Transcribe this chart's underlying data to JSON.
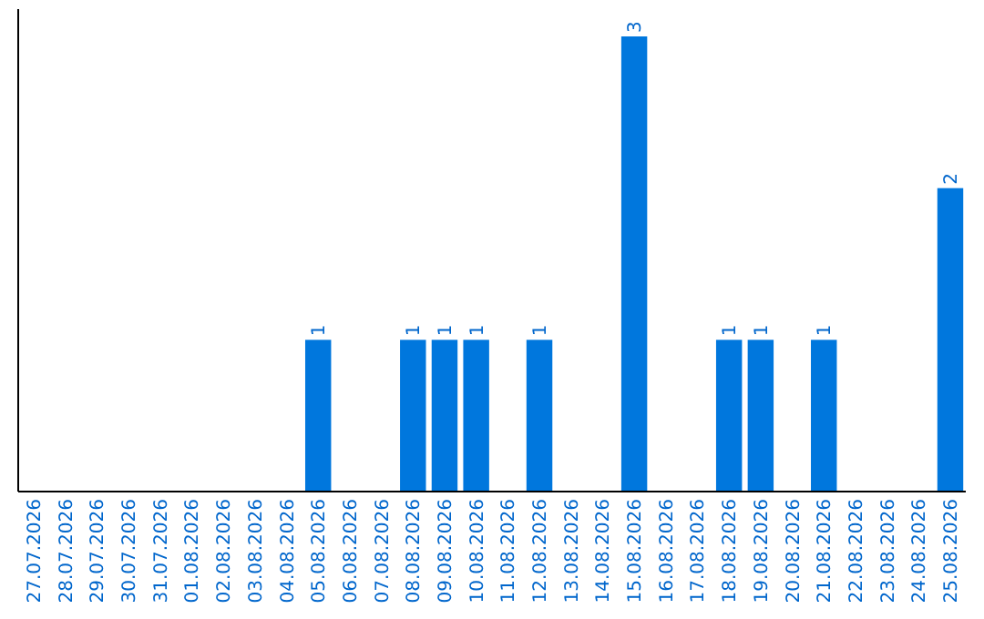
{
  "chart_data": {
    "type": "bar",
    "categories": [
      "27.07.2026",
      "28.07.2026",
      "29.07.2026",
      "30.07.2026",
      "31.07.2026",
      "01.08.2026",
      "02.08.2026",
      "03.08.2026",
      "04.08.2026",
      "05.08.2026",
      "06.08.2026",
      "07.08.2026",
      "08.08.2026",
      "09.08.2026",
      "10.08.2026",
      "11.08.2026",
      "12.08.2026",
      "13.08.2026",
      "14.08.2026",
      "15.08.2026",
      "16.08.2026",
      "17.08.2026",
      "18.08.2026",
      "19.08.2026",
      "20.08.2026",
      "21.08.2026",
      "22.08.2026",
      "23.08.2026",
      "24.08.2026",
      "25.08.2026"
    ],
    "values": [
      0,
      0,
      0,
      0,
      0,
      0,
      0,
      0,
      0,
      1,
      0,
      0,
      1,
      1,
      1,
      0,
      1,
      0,
      0,
      3,
      0,
      0,
      1,
      1,
      0,
      1,
      0,
      0,
      0,
      2
    ],
    "value_labels": [
      null,
      null,
      null,
      null,
      null,
      null,
      null,
      null,
      null,
      "1",
      null,
      null,
      "1",
      "1",
      "1",
      null,
      "1",
      null,
      null,
      "3",
      null,
      null,
      "1",
      "1",
      null,
      "1",
      null,
      null,
      null,
      "2"
    ],
    "color": "#0077dd"
  }
}
